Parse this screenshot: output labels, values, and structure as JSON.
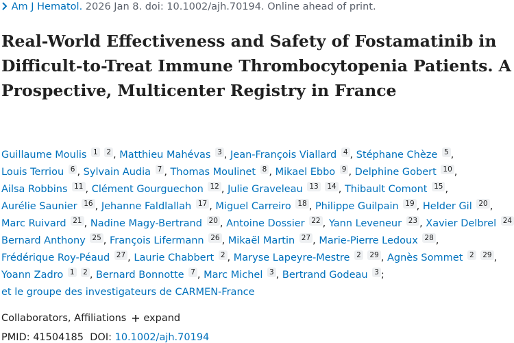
{
  "citation": {
    "journal": "Am J Hematol.",
    "details": "2026 Jan 8. doi: 10.1002/ajh.70194. Online ahead of print."
  },
  "title": "Real-World Effectiveness and Safety of Fostamatinib in Difficult-to-Treat Immune Thrombocytopenia Patients. A Prospective, Multicenter Registry in France",
  "authors": [
    {
      "name": "Guillaume Moulis",
      "affs": [
        1,
        2
      ],
      "sep": ","
    },
    {
      "name": "Matthieu Mahévas",
      "affs": [
        3
      ],
      "sep": ","
    },
    {
      "name": "Jean-François Viallard",
      "affs": [
        4
      ],
      "sep": ","
    },
    {
      "name": "Stéphane Chèze",
      "affs": [
        5
      ],
      "sep": ","
    },
    {
      "name": "Louis Terriou",
      "affs": [
        6
      ],
      "sep": ","
    },
    {
      "name": "Sylvain Audia",
      "affs": [
        7
      ],
      "sep": ","
    },
    {
      "name": "Thomas Moulinet",
      "affs": [
        8
      ],
      "sep": ","
    },
    {
      "name": "Mikael Ebbo",
      "affs": [
        9
      ],
      "sep": ","
    },
    {
      "name": "Delphine Gobert",
      "affs": [
        10
      ],
      "sep": ","
    },
    {
      "name": "Ailsa Robbins",
      "affs": [
        11
      ],
      "sep": ","
    },
    {
      "name": "Clément Gourguechon",
      "affs": [
        12
      ],
      "sep": ","
    },
    {
      "name": "Julie Graveleau",
      "affs": [
        13,
        14
      ],
      "sep": ","
    },
    {
      "name": "Thibault Comont",
      "affs": [
        15
      ],
      "sep": ","
    },
    {
      "name": "Aurélie Saunier",
      "affs": [
        16
      ],
      "sep": ","
    },
    {
      "name": "Jehanne Faldlallah",
      "affs": [
        17
      ],
      "sep": ","
    },
    {
      "name": "Miguel Carreiro",
      "affs": [
        18
      ],
      "sep": ","
    },
    {
      "name": "Philippe Guilpain",
      "affs": [
        19
      ],
      "sep": ","
    },
    {
      "name": "Helder Gil",
      "affs": [
        20
      ],
      "sep": ","
    },
    {
      "name": "Marc Ruivard",
      "affs": [
        21
      ],
      "sep": ","
    },
    {
      "name": "Nadine Magy-Bertrand",
      "affs": [
        20
      ],
      "sep": ","
    },
    {
      "name": "Antoine Dossier",
      "affs": [
        22
      ],
      "sep": ","
    },
    {
      "name": "Yann Leveneur",
      "affs": [
        23
      ],
      "sep": ","
    },
    {
      "name": "Xavier Delbrel",
      "affs": [
        24
      ],
      "sep": ","
    },
    {
      "name": "Bernard Anthony",
      "affs": [
        25
      ],
      "sep": ","
    },
    {
      "name": "François Lifermann",
      "affs": [
        26
      ],
      "sep": ","
    },
    {
      "name": "Mikaël Martin",
      "affs": [
        27
      ],
      "sep": ","
    },
    {
      "name": "Marie-Pierre Ledoux",
      "affs": [
        28
      ],
      "sep": ","
    },
    {
      "name": "Frédérique Roy-Péaud",
      "affs": [
        27
      ],
      "sep": ","
    },
    {
      "name": "Laurie Chabbert",
      "affs": [
        2
      ],
      "sep": ","
    },
    {
      "name": "Maryse Lapeyre-Mestre",
      "affs": [
        2,
        29
      ],
      "sep": ","
    },
    {
      "name": "Agnès Sommet",
      "affs": [
        2,
        29
      ],
      "sep": ","
    },
    {
      "name": "Yoann Zadro",
      "affs": [
        1,
        2
      ],
      "sep": ","
    },
    {
      "name": "Bernard Bonnotte",
      "affs": [
        7
      ],
      "sep": ","
    },
    {
      "name": "Marc Michel",
      "affs": [
        3
      ],
      "sep": ","
    },
    {
      "name": "Bertrand Godeau",
      "affs": [
        3
      ],
      "sep": ";"
    }
  ],
  "group": "et le groupe des investigateurs de CARMEN-France",
  "collaborators": "Collaborators, Affiliations",
  "expand": "expand",
  "ids": {
    "pmid_label": "PMID:",
    "pmid": "41504185",
    "doi_label": "DOI:",
    "doi": "10.1002/ajh.70194"
  }
}
